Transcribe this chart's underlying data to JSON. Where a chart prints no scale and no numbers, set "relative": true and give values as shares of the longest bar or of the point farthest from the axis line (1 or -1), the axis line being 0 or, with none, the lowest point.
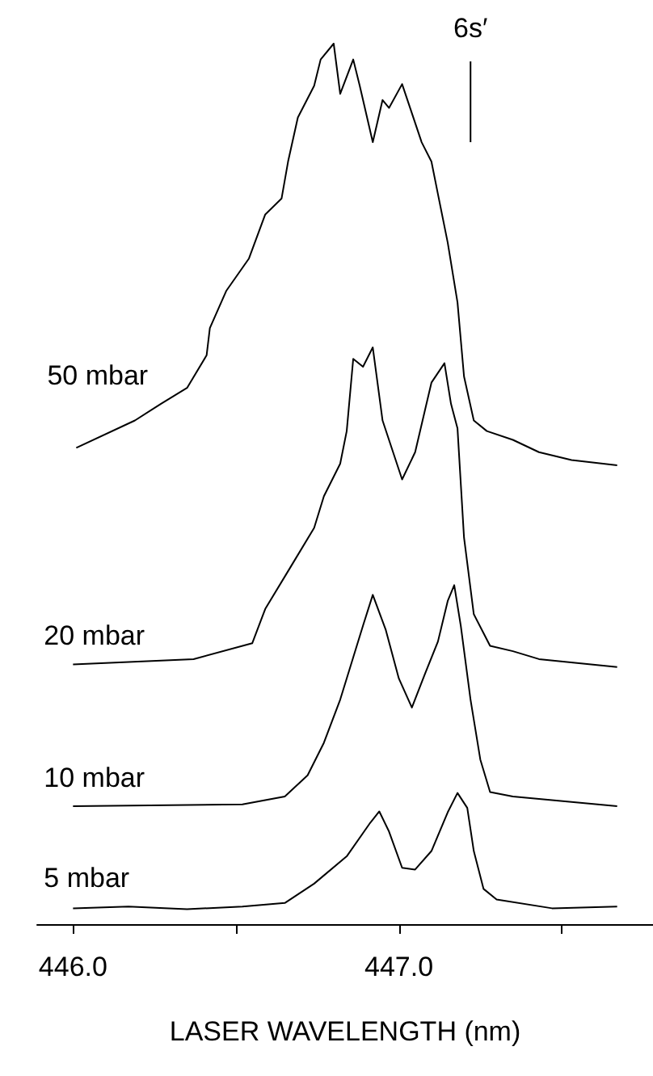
{
  "chart_data": {
    "type": "line",
    "relative": true,
    "xlabel": "LASER WAVELENGTH (nm)",
    "xlim": [
      445.89,
      447.78
    ],
    "xticks": [
      {
        "value": 446.0,
        "label": "446.0"
      },
      {
        "value": 446.5,
        "label": null
      },
      {
        "value": 447.0,
        "label": "447.0"
      },
      {
        "value": 447.5,
        "label": null
      }
    ],
    "ref_lines": [
      {
        "axis": "x",
        "value": 447.22,
        "label": "6s′"
      }
    ],
    "series": [
      {
        "name": "50 mbar",
        "color": "#000000",
        "x": [
          446.01,
          446.19,
          446.27,
          446.35,
          446.41,
          446.42,
          446.47,
          446.54,
          446.59,
          446.64,
          446.66,
          446.69,
          446.74,
          446.76,
          446.8,
          446.82,
          446.86,
          446.88,
          446.92,
          446.95,
          446.97,
          447.01,
          447.04,
          447.07,
          447.1,
          447.12,
          447.15,
          447.18,
          447.2,
          447.23,
          447.27,
          447.35,
          447.43,
          447.53,
          447.67
        ],
        "values": [
          0.541,
          0.572,
          0.591,
          0.609,
          0.646,
          0.677,
          0.719,
          0.756,
          0.806,
          0.824,
          0.866,
          0.916,
          0.952,
          0.982,
          1,
          0.943,
          0.982,
          0.952,
          0.888,
          0.936,
          0.927,
          0.954,
          0.921,
          0.888,
          0.866,
          0.829,
          0.774,
          0.706,
          0.622,
          0.572,
          0.56,
          0.55,
          0.536,
          0.527,
          0.521
        ]
      },
      {
        "name": "20 mbar",
        "color": "#000000",
        "x": [
          446.0,
          446.37,
          446.55,
          446.59,
          446.67,
          446.74,
          446.77,
          446.82,
          446.84,
          446.86,
          446.89,
          446.92,
          446.95,
          447.01,
          447.05,
          447.1,
          447.14,
          447.16,
          447.18,
          447.2,
          447.23,
          447.28,
          447.35,
          447.43,
          447.67
        ],
        "values": [
          0.295,
          0.301,
          0.319,
          0.358,
          0.407,
          0.45,
          0.486,
          0.523,
          0.56,
          0.642,
          0.633,
          0.655,
          0.572,
          0.505,
          0.536,
          0.615,
          0.637,
          0.591,
          0.563,
          0.439,
          0.352,
          0.316,
          0.31,
          0.301,
          0.292
        ]
      },
      {
        "name": "10 mbar",
        "color": "#000000",
        "x": [
          446.0,
          446.52,
          446.65,
          446.72,
          446.77,
          446.82,
          446.86,
          446.89,
          446.92,
          446.96,
          447.0,
          447.04,
          447.08,
          447.12,
          447.15,
          447.17,
          447.19,
          447.22,
          447.25,
          447.28,
          447.35,
          447.67
        ],
        "values": [
          0.134,
          0.136,
          0.145,
          0.169,
          0.206,
          0.255,
          0.303,
          0.339,
          0.374,
          0.334,
          0.279,
          0.246,
          0.284,
          0.321,
          0.367,
          0.385,
          0.339,
          0.255,
          0.187,
          0.15,
          0.145,
          0.134
        ]
      },
      {
        "name": "5 mbar",
        "color": "#000000",
        "x": [
          446.0,
          446.17,
          446.35,
          446.52,
          446.65,
          446.74,
          446.84,
          446.91,
          446.94,
          446.97,
          447.01,
          447.05,
          447.1,
          447.15,
          447.18,
          447.21,
          447.23,
          447.26,
          447.3,
          447.47,
          447.67
        ],
        "values": [
          0.018,
          0.02,
          0.017,
          0.02,
          0.024,
          0.046,
          0.077,
          0.114,
          0.128,
          0.105,
          0.064,
          0.062,
          0.083,
          0.127,
          0.149,
          0.132,
          0.083,
          0.04,
          0.028,
          0.018,
          0.02
        ]
      }
    ]
  }
}
